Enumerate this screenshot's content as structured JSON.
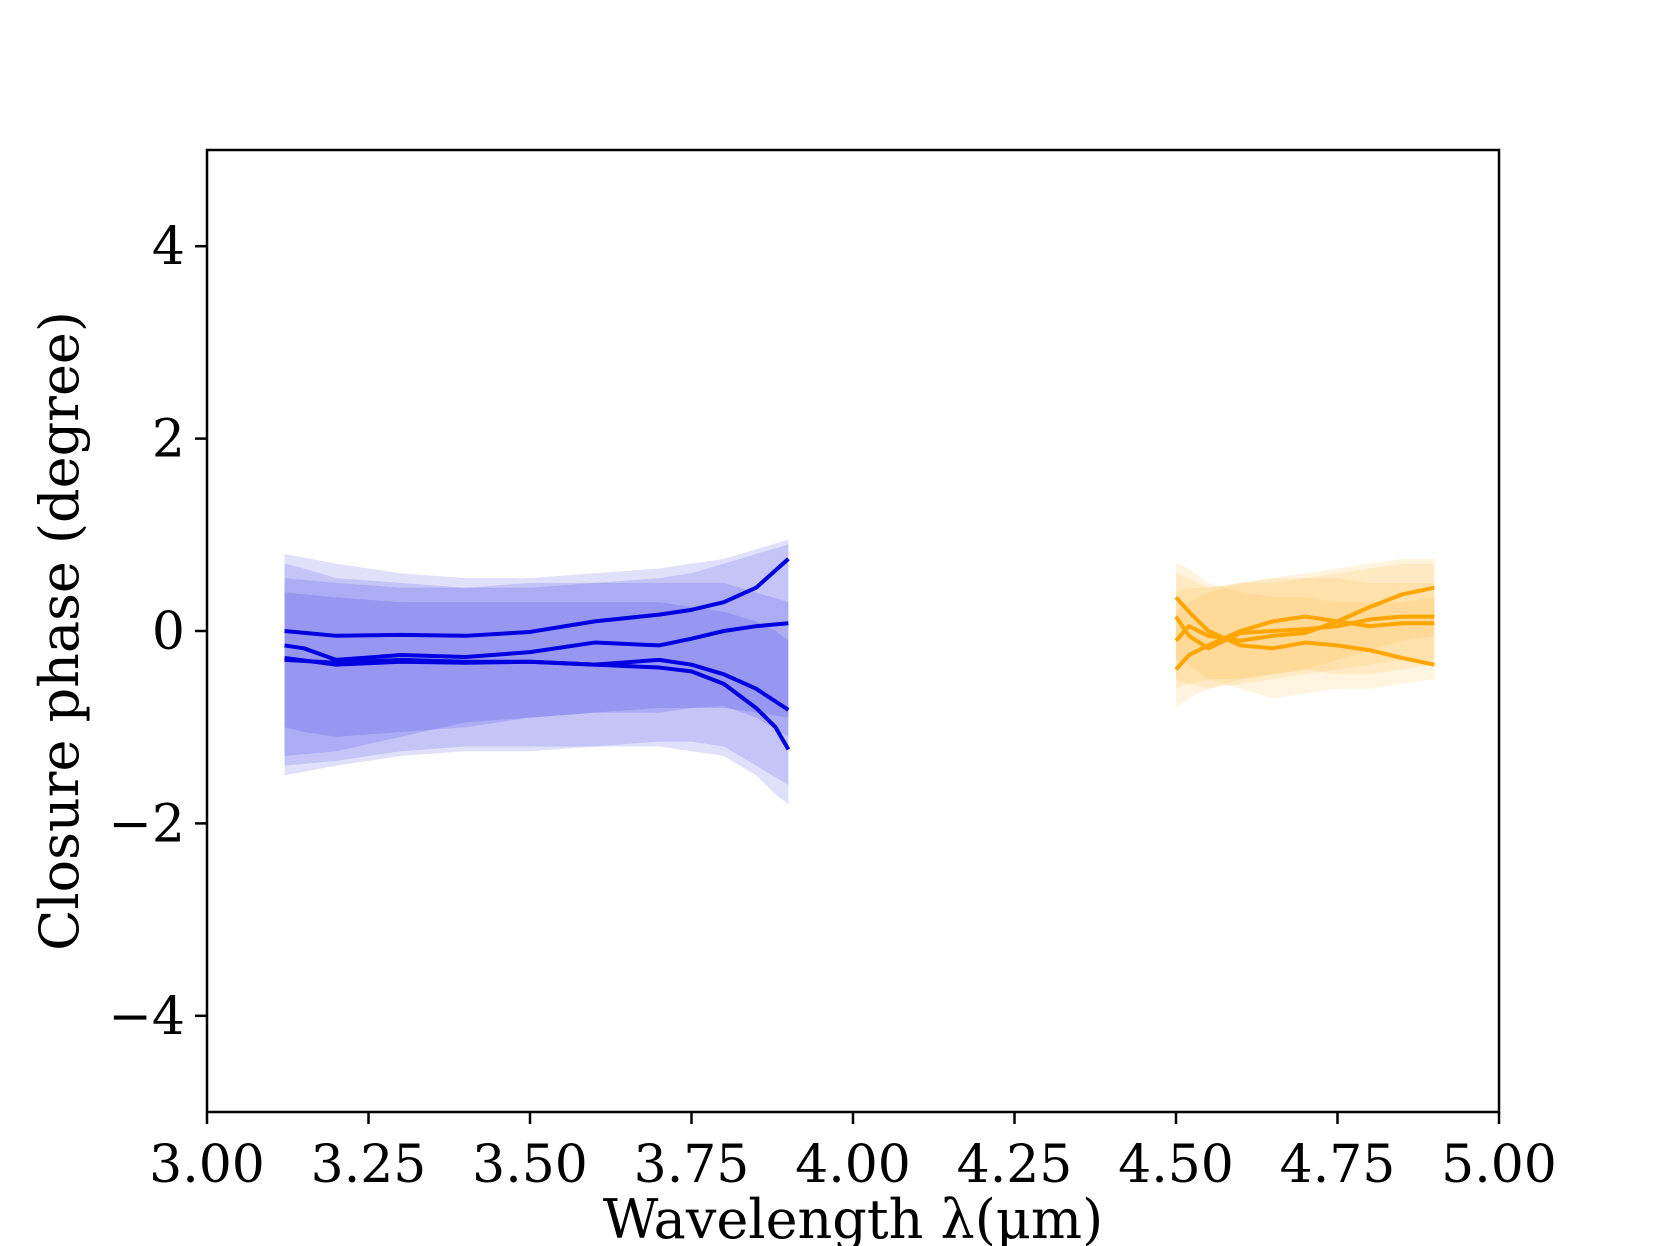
{
  "chart_data": {
    "type": "line",
    "xlabel": "Wavelength λ(μm)",
    "ylabel": "Closure phase (degree)",
    "xlim": [
      3.0,
      5.0
    ],
    "ylim": [
      -5.0,
      5.0
    ],
    "xticks": [
      "3.00",
      "3.25",
      "3.50",
      "3.75",
      "4.00",
      "4.25",
      "4.50",
      "4.75",
      "5.00"
    ],
    "yticks": [
      "−4",
      "−2",
      "0",
      "2",
      "4"
    ],
    "ytick_values": [
      -4,
      -2,
      0,
      2,
      4
    ],
    "grid": false,
    "legend": "none",
    "band_colors": {
      "L": "#0000e0",
      "M": "#ffa500"
    },
    "series": [
      {
        "band": "L",
        "x": [
          3.12,
          3.2,
          3.3,
          3.4,
          3.5,
          3.6,
          3.7,
          3.75,
          3.8,
          3.85,
          3.9
        ],
        "y": [
          0.0,
          -0.05,
          -0.04,
          -0.05,
          -0.01,
          0.1,
          0.17,
          0.22,
          0.3,
          0.45,
          0.75
        ],
        "band_low": [
          -1.3,
          -1.25,
          -1.1,
          -0.95,
          -0.9,
          -0.85,
          -0.8,
          -0.8,
          -0.78,
          -0.9,
          -1.1
        ],
        "band_high": [
          0.8,
          0.7,
          0.6,
          0.55,
          0.55,
          0.6,
          0.65,
          0.7,
          0.75,
          0.85,
          0.95
        ]
      },
      {
        "band": "L",
        "x": [
          3.12,
          3.15,
          3.2,
          3.3,
          3.4,
          3.5,
          3.6,
          3.7,
          3.75,
          3.8,
          3.85,
          3.9
        ],
        "y": [
          -0.15,
          -0.18,
          -0.3,
          -0.25,
          -0.27,
          -0.22,
          -0.12,
          -0.15,
          -0.08,
          0.0,
          0.05,
          0.08
        ],
        "band_low": [
          -1.0,
          -1.05,
          -1.1,
          -1.05,
          -1.0,
          -0.9,
          -0.85,
          -0.85,
          -0.8,
          -0.8,
          -0.85,
          -0.9
        ],
        "band_high": [
          0.7,
          0.65,
          0.55,
          0.5,
          0.45,
          0.45,
          0.5,
          0.55,
          0.6,
          0.7,
          0.8,
          0.9
        ]
      },
      {
        "band": "L",
        "x": [
          3.12,
          3.2,
          3.3,
          3.4,
          3.5,
          3.6,
          3.7,
          3.75,
          3.8,
          3.85,
          3.9
        ],
        "y": [
          -0.3,
          -0.33,
          -0.3,
          -0.32,
          -0.32,
          -0.35,
          -0.3,
          -0.35,
          -0.45,
          -0.6,
          -0.82
        ],
        "band_low": [
          -1.5,
          -1.4,
          -1.3,
          -1.25,
          -1.25,
          -1.2,
          -1.15,
          -1.15,
          -1.2,
          -1.4,
          -1.6
        ],
        "band_high": [
          0.55,
          0.5,
          0.45,
          0.45,
          0.5,
          0.5,
          0.5,
          0.5,
          0.5,
          0.4,
          0.3
        ]
      },
      {
        "band": "L",
        "x": [
          3.12,
          3.2,
          3.3,
          3.4,
          3.5,
          3.6,
          3.7,
          3.75,
          3.8,
          3.85,
          3.88,
          3.9
        ],
        "y": [
          -0.28,
          -0.35,
          -0.32,
          -0.33,
          -0.32,
          -0.35,
          -0.38,
          -0.42,
          -0.55,
          -0.8,
          -1.0,
          -1.23
        ],
        "band_low": [
          -1.4,
          -1.35,
          -1.25,
          -1.2,
          -1.2,
          -1.2,
          -1.2,
          -1.25,
          -1.3,
          -1.5,
          -1.7,
          -1.8
        ],
        "band_high": [
          0.4,
          0.35,
          0.3,
          0.3,
          0.3,
          0.3,
          0.3,
          0.25,
          0.2,
          0.1,
          0.0,
          -0.1
        ]
      },
      {
        "band": "M",
        "x": [
          4.5,
          4.52,
          4.55,
          4.6,
          4.65,
          4.7,
          4.75,
          4.8,
          4.85,
          4.9
        ],
        "y": [
          0.35,
          0.2,
          0.0,
          -0.15,
          -0.18,
          -0.12,
          -0.15,
          -0.2,
          -0.28,
          -0.35
        ],
        "band_low": [
          -0.3,
          -0.35,
          -0.5,
          -0.6,
          -0.7,
          -0.65,
          -0.6,
          -0.6,
          -0.55,
          -0.5
        ],
        "band_high": [
          0.7,
          0.65,
          0.5,
          0.4,
          0.35,
          0.35,
          0.3,
          0.3,
          0.3,
          0.35
        ]
      },
      {
        "band": "M",
        "x": [
          4.5,
          4.52,
          4.55,
          4.6,
          4.65,
          4.7,
          4.75,
          4.8,
          4.85,
          4.9
        ],
        "y": [
          -0.4,
          -0.25,
          -0.15,
          0.0,
          0.1,
          0.15,
          0.1,
          0.05,
          0.08,
          0.08
        ],
        "band_low": [
          -0.8,
          -0.7,
          -0.6,
          -0.5,
          -0.45,
          -0.4,
          -0.45,
          -0.45,
          -0.4,
          -0.35
        ],
        "band_high": [
          0.2,
          0.3,
          0.4,
          0.5,
          0.55,
          0.55,
          0.55,
          0.5,
          0.5,
          0.5
        ]
      },
      {
        "band": "M",
        "x": [
          4.5,
          4.52,
          4.55,
          4.6,
          4.65,
          4.7,
          4.75,
          4.8,
          4.85,
          4.9
        ],
        "y": [
          0.15,
          -0.05,
          -0.18,
          -0.02,
          0.0,
          0.02,
          0.05,
          0.12,
          0.15,
          0.15
        ],
        "band_low": [
          -0.5,
          -0.55,
          -0.6,
          -0.55,
          -0.5,
          -0.45,
          -0.4,
          -0.35,
          -0.3,
          -0.3
        ],
        "band_high": [
          0.6,
          0.55,
          0.45,
          0.5,
          0.5,
          0.55,
          0.6,
          0.65,
          0.7,
          0.7
        ]
      },
      {
        "band": "M",
        "x": [
          4.5,
          4.52,
          4.55,
          4.6,
          4.65,
          4.7,
          4.75,
          4.8,
          4.85,
          4.9
        ],
        "y": [
          -0.1,
          0.05,
          -0.05,
          -0.1,
          -0.05,
          -0.02,
          0.1,
          0.25,
          0.38,
          0.45
        ],
        "band_low": [
          -0.6,
          -0.55,
          -0.5,
          -0.5,
          -0.45,
          -0.4,
          -0.3,
          -0.2,
          -0.1,
          -0.05
        ],
        "band_high": [
          0.4,
          0.45,
          0.45,
          0.5,
          0.55,
          0.6,
          0.65,
          0.7,
          0.75,
          0.75
        ]
      }
    ]
  }
}
